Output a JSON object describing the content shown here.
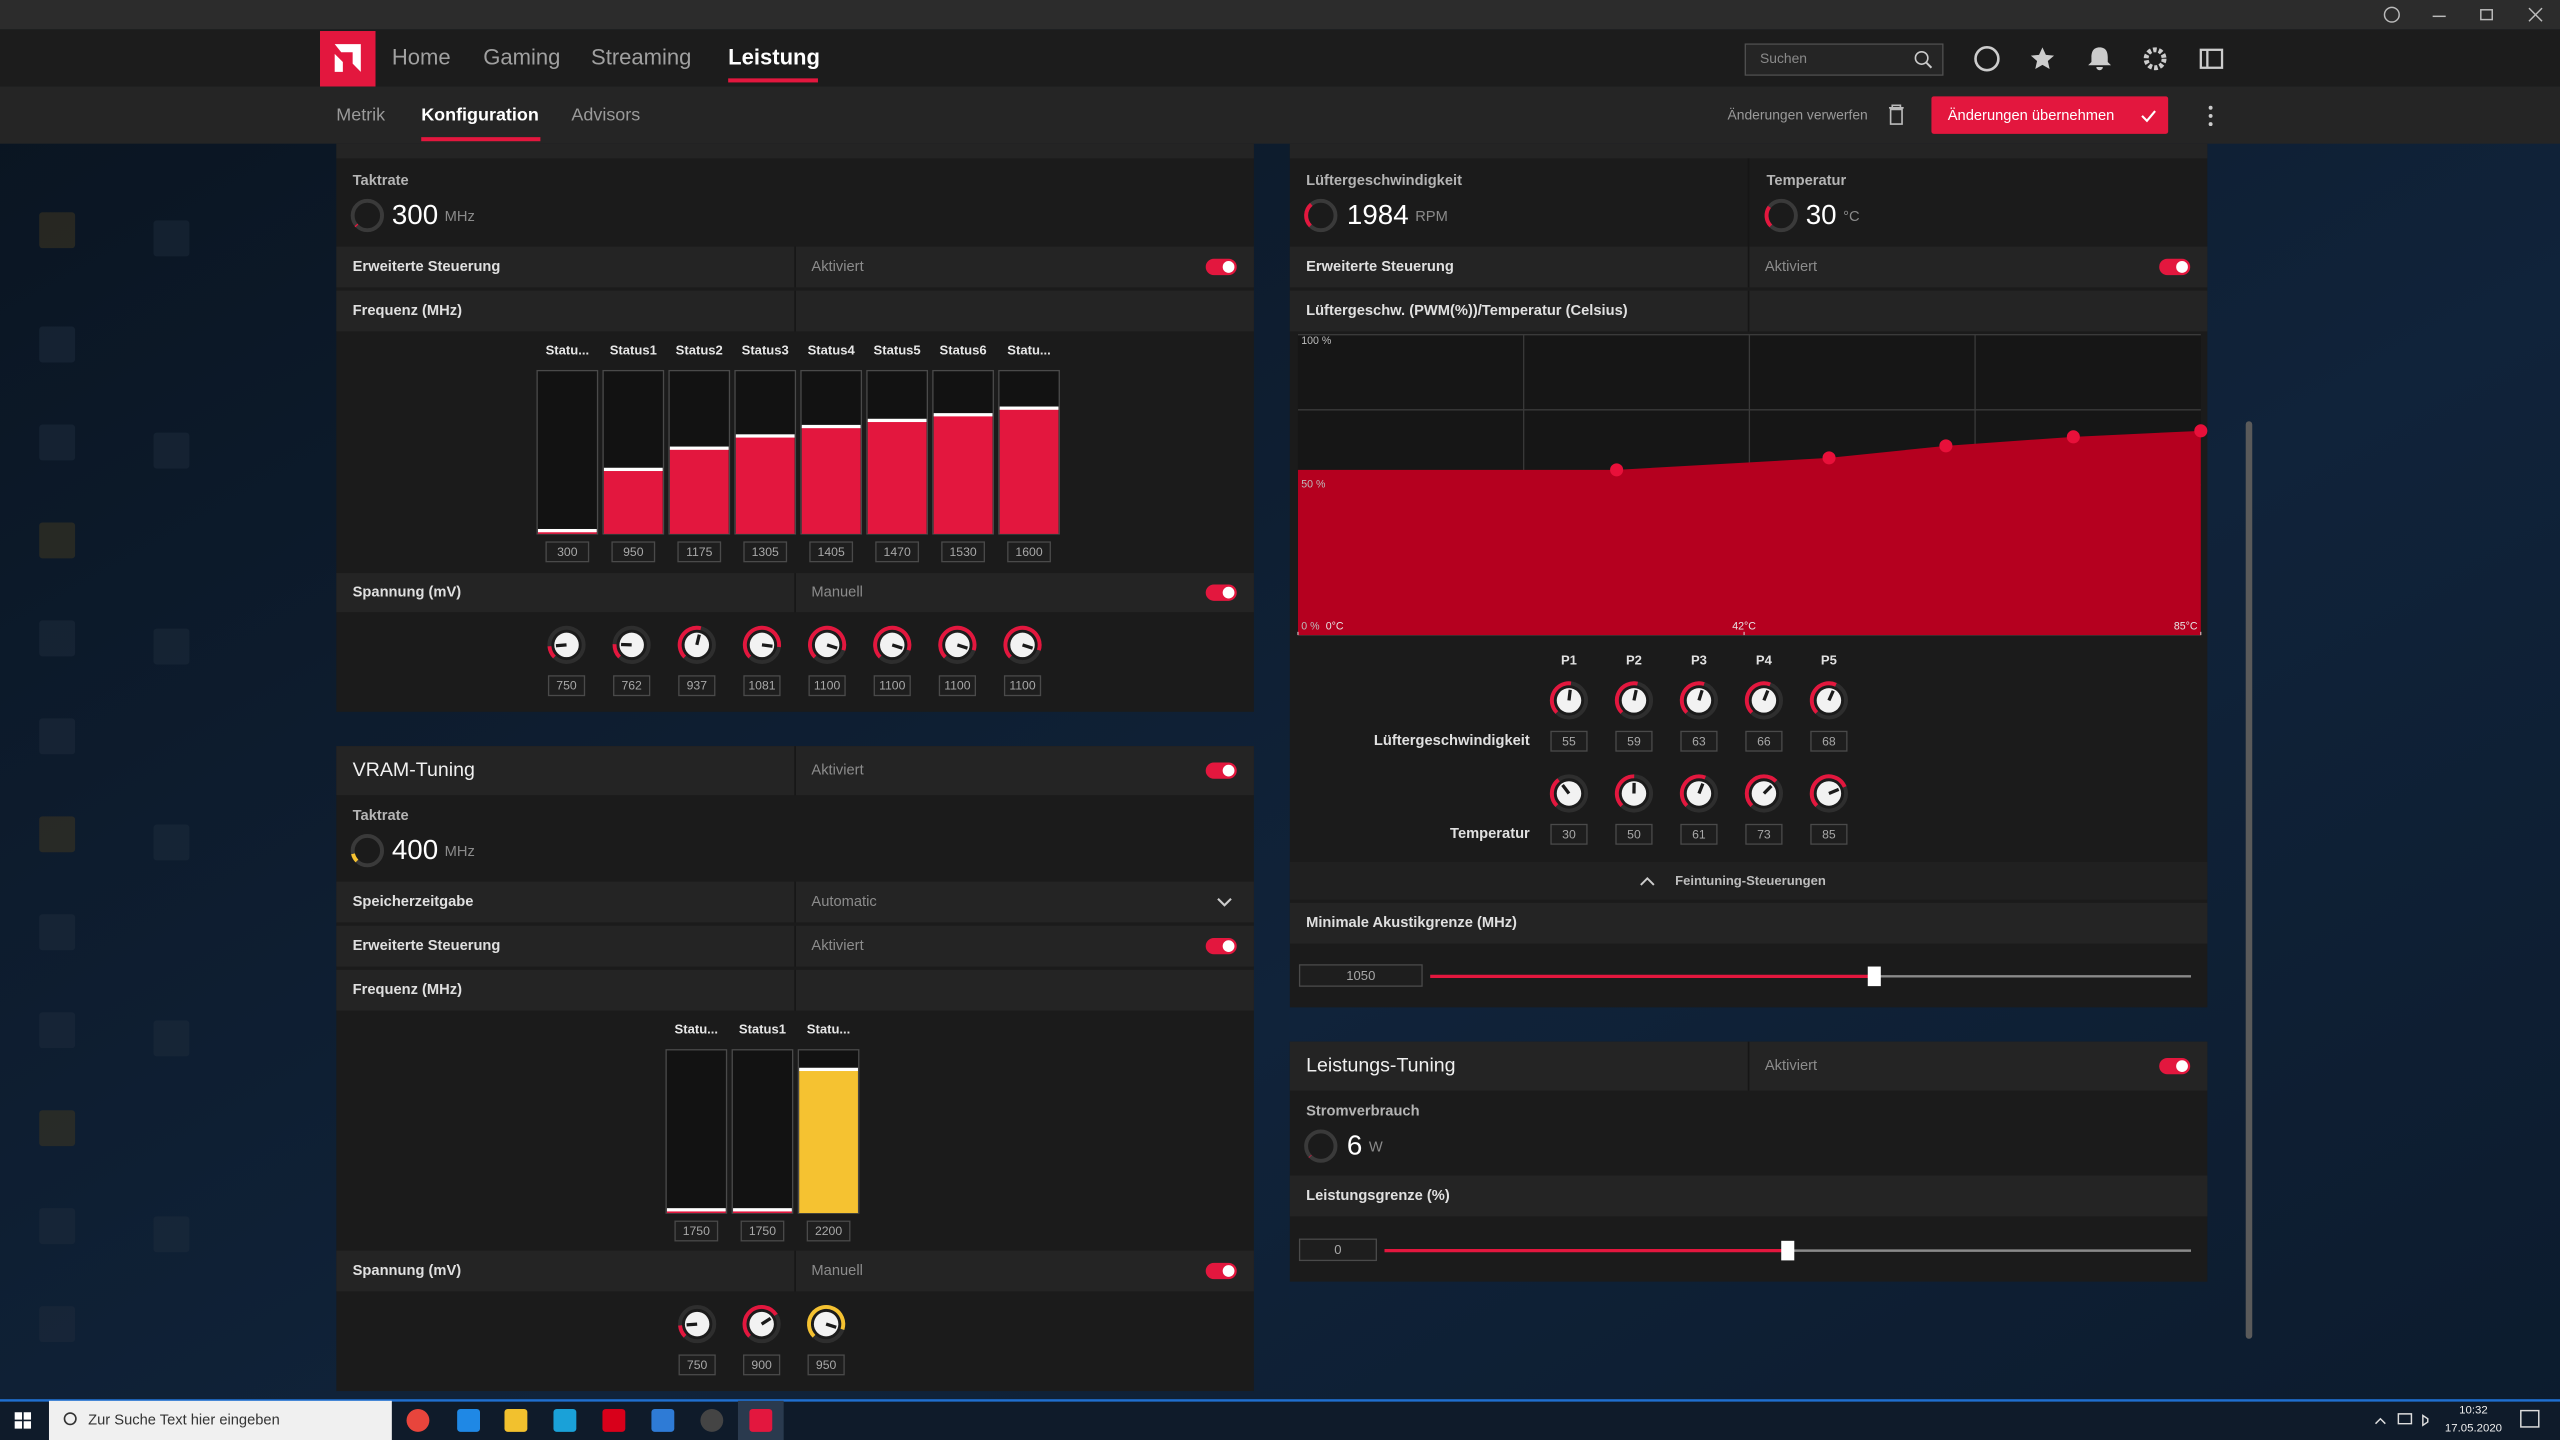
{
  "nav": {
    "tabs": [
      "Home",
      "Gaming",
      "Streaming",
      "Leistung"
    ],
    "search_placeholder": "Suchen"
  },
  "subnav": {
    "tabs": [
      "Metrik",
      "Konfiguration",
      "Advisors"
    ],
    "discard": "Änderungen verwerfen",
    "apply": "Änderungen übernehmen"
  },
  "gpu_tuning": {
    "clock_label": "Taktrate",
    "clock_value": 300,
    "clock_unit": "MHz",
    "advanced_control": {
      "label": "Erweiterte Steuerung",
      "value": "Aktiviert"
    },
    "frequency": {
      "label": "Frequenz (MHz)",
      "states": [
        "Statu...",
        "Status1",
        "Status2",
        "Status3",
        "Status4",
        "Status5",
        "Status6",
        "Statu..."
      ],
      "values": [
        300,
        950,
        1175,
        1305,
        1405,
        1470,
        1530,
        1600
      ]
    },
    "voltage": {
      "label": "Spannung (mV)",
      "mode": "Manuell",
      "values": [
        750,
        762,
        937,
        1081,
        1100,
        1100,
        1100,
        1100
      ]
    }
  },
  "vram_tuning": {
    "title": "VRAM-Tuning",
    "status": "Aktiviert",
    "clock_label": "Taktrate",
    "clock_value": 400,
    "clock_unit": "MHz",
    "memory_timing": {
      "label": "Speicherzeitgabe",
      "value": "Automatic"
    },
    "advanced_control": {
      "label": "Erweiterte Steuerung",
      "value": "Aktiviert"
    },
    "frequency": {
      "label": "Frequenz (MHz)",
      "states": [
        "Statu...",
        "Status1",
        "Statu..."
      ],
      "values": [
        1750,
        1750,
        2200
      ]
    },
    "voltage": {
      "label": "Spannung (mV)",
      "mode": "Manuell",
      "values": [
        750,
        900,
        950
      ]
    }
  },
  "fan_tuning": {
    "speed_label": "Lüftergeschwindigkeit",
    "speed_value": 1984,
    "speed_unit": "RPM",
    "temp_label": "Temperatur",
    "temp_value": 30,
    "temp_unit": "°C",
    "advanced_control": {
      "label": "Erweiterte Steuerung",
      "value": "Aktiviert"
    },
    "curve": {
      "title": "Lüftergeschw. (PWM(%))/Temperatur (Celsius)",
      "yticks": [
        {
          "value": 0,
          "label": "0 %"
        },
        {
          "value": 50,
          "label": "50 %"
        },
        {
          "value": 100,
          "label": "100 %"
        }
      ],
      "xticks": [
        {
          "value": 0,
          "label": "0°C"
        },
        {
          "value": 42,
          "label": "42°C"
        },
        {
          "value": 85,
          "label": "85°C"
        }
      ],
      "points": [
        "P1",
        "P2",
        "P3",
        "P4",
        "P5"
      ],
      "speed_label": "Lüftergeschwindigkeit",
      "speeds": [
        55,
        59,
        63,
        66,
        68
      ],
      "temp_label": "Temperatur",
      "temps": [
        30,
        50,
        61,
        73,
        85
      ]
    },
    "fine_tuning": "Feintuning-Steuerungen",
    "min_acoustic": {
      "label": "Minimale Akustikgrenze (MHz)",
      "value": 1050
    }
  },
  "power_tuning": {
    "title": "Leistungs-Tuning",
    "status": "Aktiviert",
    "power_label": "Stromverbrauch",
    "power_value": 6,
    "power_unit": "W",
    "limit": {
      "label": "Leistungsgrenze (%)",
      "value": 0
    }
  },
  "taskbar": {
    "search": "Zur Suche Text hier eingeben",
    "time": "10:32",
    "date": "17.05.2020"
  }
}
